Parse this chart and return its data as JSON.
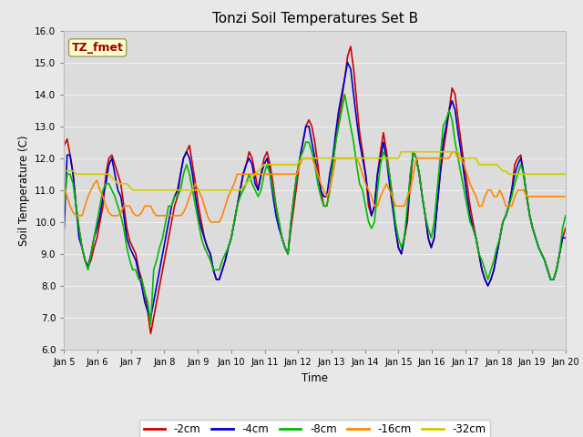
{
  "title": "Tonzi Soil Temperatures Set B",
  "xlabel": "Time",
  "ylabel": "Soil Temperature (C)",
  "annotation": "TZ_fmet",
  "ylim": [
    6.0,
    16.0
  ],
  "yticks": [
    6.0,
    7.0,
    8.0,
    9.0,
    10.0,
    11.0,
    12.0,
    13.0,
    14.0,
    15.0,
    16.0
  ],
  "xtick_labels": [
    "Jan 5",
    "Jan 6",
    "Jan 7",
    "Jan 8",
    "Jan 9",
    "Jan 10",
    "Jan 11",
    "Jan 12",
    "Jan 13",
    "Jan 14",
    "Jan 15",
    "Jan 16",
    "Jan 17",
    "Jan 18",
    "Jan 19",
    "Jan 20"
  ],
  "series_colors": [
    "#cc0000",
    "#0000cc",
    "#00bb00",
    "#ff8800",
    "#cccc00"
  ],
  "series_labels": [
    "-2cm",
    "-4cm",
    "-8cm",
    "-16cm",
    "-32cm"
  ],
  "line_width": 1.2,
  "fig_facecolor": "#e8e8e8",
  "axes_facecolor": "#dcdcdc",
  "grid_color": "#f0f0f0",
  "annotation_bg": "#ffffcc",
  "annotation_color": "#990000",
  "s2cm": [
    12.4,
    12.6,
    12.1,
    11.5,
    10.5,
    9.8,
    9.2,
    8.8,
    8.6,
    8.8,
    9.2,
    9.5,
    10.0,
    10.5,
    11.5,
    12.0,
    12.1,
    11.8,
    11.5,
    11.2,
    10.5,
    9.8,
    9.4,
    9.2,
    9.0,
    8.5,
    8.2,
    7.8,
    7.2,
    6.5,
    7.0,
    7.5,
    8.0,
    8.5,
    9.0,
    9.5,
    10.0,
    10.5,
    10.8,
    11.5,
    12.0,
    12.2,
    12.4,
    11.8,
    11.2,
    10.5,
    10.0,
    9.5,
    9.2,
    9.0,
    8.5,
    8.2,
    8.2,
    8.5,
    8.8,
    9.2,
    9.5,
    10.0,
    10.5,
    11.0,
    11.5,
    11.8,
    12.2,
    12.0,
    11.5,
    11.0,
    11.5,
    12.0,
    12.2,
    11.8,
    11.2,
    10.5,
    10.0,
    9.5,
    9.2,
    9.0,
    9.8,
    10.5,
    11.2,
    12.0,
    12.5,
    13.0,
    13.2,
    13.0,
    12.5,
    11.8,
    11.0,
    10.5,
    10.5,
    11.0,
    11.8,
    12.5,
    13.2,
    13.8,
    14.5,
    15.2,
    15.5,
    14.8,
    13.8,
    12.8,
    12.2,
    11.5,
    10.5,
    10.2,
    10.5,
    11.5,
    12.2,
    12.8,
    12.2,
    11.5,
    10.8,
    9.8,
    9.2,
    9.0,
    9.5,
    10.0,
    11.2,
    12.2,
    12.0,
    11.5,
    10.8,
    10.2,
    9.5,
    9.2,
    9.5,
    10.5,
    11.5,
    12.2,
    12.8,
    13.5,
    14.2,
    14.0,
    13.2,
    12.5,
    11.8,
    11.2,
    10.5,
    10.0,
    9.5,
    9.0,
    8.5,
    8.2,
    8.0,
    8.2,
    8.5,
    9.0,
    9.5,
    10.0,
    10.2,
    10.5,
    11.0,
    11.8,
    12.0,
    12.1,
    11.5,
    10.8,
    10.2,
    9.8,
    9.5,
    9.2,
    9.0,
    8.8,
    8.5,
    8.2,
    8.2,
    8.5,
    9.0,
    9.5,
    9.8
  ],
  "s4cm": [
    9.8,
    12.1,
    12.1,
    11.5,
    10.5,
    9.5,
    9.2,
    8.8,
    8.6,
    9.0,
    9.5,
    9.8,
    10.2,
    10.8,
    11.2,
    11.8,
    12.0,
    11.5,
    11.0,
    10.8,
    10.2,
    9.5,
    9.2,
    9.0,
    8.8,
    8.4,
    8.0,
    7.5,
    7.2,
    7.0,
    7.5,
    8.0,
    8.5,
    9.0,
    9.5,
    10.0,
    10.5,
    10.8,
    11.0,
    11.5,
    12.0,
    12.2,
    12.0,
    11.5,
    10.8,
    10.2,
    9.8,
    9.5,
    9.2,
    9.0,
    8.5,
    8.2,
    8.2,
    8.5,
    8.8,
    9.2,
    9.5,
    10.0,
    10.5,
    11.0,
    11.5,
    11.8,
    12.0,
    11.8,
    11.2,
    11.0,
    11.5,
    11.8,
    12.0,
    11.5,
    10.8,
    10.2,
    9.8,
    9.5,
    9.2,
    9.0,
    10.0,
    10.8,
    11.5,
    12.0,
    12.5,
    13.0,
    13.0,
    12.5,
    12.0,
    11.5,
    11.0,
    10.8,
    10.8,
    11.5,
    12.0,
    12.8,
    13.5,
    14.0,
    14.5,
    15.0,
    14.8,
    14.0,
    13.2,
    12.5,
    12.0,
    11.5,
    10.8,
    10.2,
    10.5,
    11.5,
    12.0,
    12.5,
    12.0,
    11.2,
    10.5,
    9.8,
    9.2,
    9.0,
    9.5,
    10.2,
    11.5,
    12.2,
    12.0,
    11.5,
    10.8,
    10.2,
    9.5,
    9.2,
    9.5,
    10.5,
    11.5,
    12.5,
    13.0,
    13.5,
    13.8,
    13.5,
    12.8,
    12.2,
    11.5,
    10.8,
    10.2,
    9.8,
    9.5,
    9.0,
    8.5,
    8.2,
    8.0,
    8.2,
    8.5,
    9.0,
    9.5,
    10.0,
    10.2,
    10.5,
    11.0,
    11.5,
    11.8,
    12.0,
    11.5,
    10.8,
    10.2,
    9.8,
    9.5,
    9.2,
    9.0,
    8.8,
    8.5,
    8.2,
    8.2,
    8.5,
    9.0,
    9.5,
    9.5
  ],
  "s8cm": [
    10.5,
    11.5,
    11.5,
    11.2,
    10.5,
    9.8,
    9.2,
    8.8,
    8.5,
    9.0,
    9.5,
    10.0,
    10.5,
    11.0,
    11.2,
    11.2,
    11.0,
    10.8,
    10.5,
    10.2,
    9.8,
    9.2,
    8.8,
    8.5,
    8.5,
    8.2,
    8.2,
    7.8,
    7.5,
    6.8,
    8.5,
    8.8,
    9.2,
    9.5,
    10.0,
    10.5,
    10.5,
    10.8,
    10.8,
    11.0,
    11.5,
    11.8,
    11.5,
    11.0,
    10.5,
    10.0,
    9.5,
    9.2,
    9.0,
    8.8,
    8.5,
    8.5,
    8.5,
    8.8,
    9.0,
    9.2,
    9.5,
    10.0,
    10.5,
    10.8,
    11.0,
    11.2,
    11.5,
    11.2,
    11.0,
    10.8,
    11.0,
    11.5,
    11.8,
    11.5,
    11.0,
    10.5,
    10.0,
    9.5,
    9.2,
    9.0,
    10.0,
    10.8,
    11.5,
    12.0,
    12.2,
    12.5,
    12.5,
    12.2,
    11.8,
    11.2,
    10.8,
    10.5,
    10.5,
    11.0,
    11.8,
    12.5,
    13.0,
    13.5,
    14.0,
    13.5,
    13.0,
    12.5,
    11.8,
    11.2,
    11.0,
    10.5,
    10.0,
    9.8,
    10.0,
    11.0,
    11.8,
    12.2,
    12.0,
    11.5,
    10.8,
    10.0,
    9.5,
    9.2,
    9.5,
    10.5,
    11.5,
    12.2,
    12.0,
    11.5,
    10.8,
    10.2,
    9.8,
    9.5,
    10.0,
    11.0,
    12.0,
    13.0,
    13.2,
    13.5,
    13.2,
    12.5,
    12.0,
    11.5,
    11.0,
    10.5,
    10.0,
    9.8,
    9.5,
    9.0,
    8.8,
    8.5,
    8.2,
    8.5,
    8.8,
    9.2,
    9.5,
    10.0,
    10.2,
    10.5,
    10.8,
    11.2,
    11.5,
    11.8,
    11.5,
    10.8,
    10.2,
    9.8,
    9.5,
    9.2,
    9.0,
    8.8,
    8.5,
    8.2,
    8.2,
    8.5,
    9.0,
    9.8,
    10.2
  ],
  "s16cm": [
    11.1,
    10.8,
    10.5,
    10.3,
    10.2,
    10.2,
    10.2,
    10.5,
    10.8,
    11.0,
    11.2,
    11.3,
    11.0,
    10.8,
    10.5,
    10.3,
    10.2,
    10.2,
    10.2,
    10.3,
    10.5,
    10.5,
    10.5,
    10.3,
    10.2,
    10.2,
    10.3,
    10.5,
    10.5,
    10.5,
    10.3,
    10.2,
    10.2,
    10.2,
    10.2,
    10.2,
    10.2,
    10.2,
    10.2,
    10.2,
    10.3,
    10.5,
    10.8,
    11.0,
    11.2,
    11.0,
    10.8,
    10.5,
    10.2,
    10.0,
    10.0,
    10.0,
    10.0,
    10.2,
    10.5,
    10.8,
    11.0,
    11.2,
    11.5,
    11.5,
    11.5,
    11.5,
    11.5,
    11.5,
    11.5,
    11.5,
    11.5,
    11.5,
    11.5,
    11.5,
    11.5,
    11.5,
    11.5,
    11.5,
    11.5,
    11.5,
    11.5,
    11.5,
    11.5,
    11.8,
    12.0,
    12.0,
    12.0,
    12.0,
    11.8,
    11.5,
    11.2,
    11.0,
    10.8,
    11.0,
    11.5,
    12.0,
    12.0,
    12.0,
    12.0,
    12.0,
    12.0,
    12.0,
    12.0,
    11.8,
    11.5,
    11.2,
    11.0,
    10.8,
    10.5,
    10.5,
    10.8,
    11.0,
    11.2,
    11.0,
    10.8,
    10.5,
    10.5,
    10.5,
    10.5,
    10.8,
    11.0,
    11.5,
    12.0,
    12.0,
    12.0,
    12.0,
    12.0,
    12.0,
    12.0,
    12.0,
    12.0,
    12.0,
    12.0,
    12.0,
    12.2,
    12.2,
    12.0,
    12.0,
    11.8,
    11.5,
    11.2,
    11.0,
    10.8,
    10.5,
    10.5,
    10.8,
    11.0,
    11.0,
    10.8,
    10.8,
    11.0,
    10.8,
    10.5,
    10.5,
    10.5,
    10.8,
    11.0,
    11.0,
    11.0,
    10.8,
    10.8,
    10.8,
    10.8,
    10.8,
    10.8,
    10.8,
    10.8,
    10.8,
    10.8,
    10.8,
    10.8,
    10.8,
    10.8
  ],
  "s32cm": [
    11.6,
    11.6,
    11.6,
    11.6,
    11.5,
    11.5,
    11.5,
    11.5,
    11.5,
    11.5,
    11.5,
    11.5,
    11.5,
    11.5,
    11.5,
    11.5,
    11.4,
    11.3,
    11.2,
    11.2,
    11.2,
    11.2,
    11.1,
    11.0,
    11.0,
    11.0,
    11.0,
    11.0,
    11.0,
    11.0,
    11.0,
    11.0,
    11.0,
    11.0,
    11.0,
    11.0,
    11.0,
    11.0,
    11.0,
    11.0,
    11.0,
    11.0,
    11.0,
    11.0,
    11.0,
    11.0,
    11.0,
    11.0,
    11.0,
    11.0,
    11.0,
    11.0,
    11.0,
    11.0,
    11.0,
    11.0,
    11.0,
    11.0,
    11.0,
    11.0,
    11.1,
    11.2,
    11.3,
    11.4,
    11.5,
    11.6,
    11.7,
    11.8,
    11.8,
    11.8,
    11.8,
    11.8,
    11.8,
    11.8,
    11.8,
    11.8,
    11.8,
    11.8,
    11.8,
    11.9,
    12.0,
    12.0,
    12.0,
    12.0,
    12.0,
    12.0,
    12.0,
    12.0,
    12.0,
    12.0,
    12.0,
    12.0,
    12.0,
    12.0,
    12.0,
    12.0,
    12.0,
    12.0,
    12.0,
    12.0,
    12.0,
    12.0,
    12.0,
    12.0,
    12.0,
    12.0,
    12.0,
    12.0,
    12.0,
    12.0,
    12.0,
    12.0,
    12.0,
    12.2,
    12.2,
    12.2,
    12.2,
    12.2,
    12.2,
    12.2,
    12.2,
    12.2,
    12.2,
    12.2,
    12.2,
    12.2,
    12.2,
    12.2,
    12.2,
    12.2,
    12.2,
    12.2,
    12.2,
    12.0,
    12.0,
    12.0,
    12.0,
    12.0,
    12.0,
    11.8,
    11.8,
    11.8,
    11.8,
    11.8,
    11.8,
    11.8,
    11.7,
    11.6,
    11.6,
    11.5,
    11.5,
    11.5,
    11.5,
    11.5,
    11.5,
    11.5,
    11.5,
    11.5,
    11.5,
    11.5,
    11.5,
    11.5,
    11.5,
    11.5,
    11.5,
    11.5,
    11.5,
    11.5,
    11.5
  ]
}
